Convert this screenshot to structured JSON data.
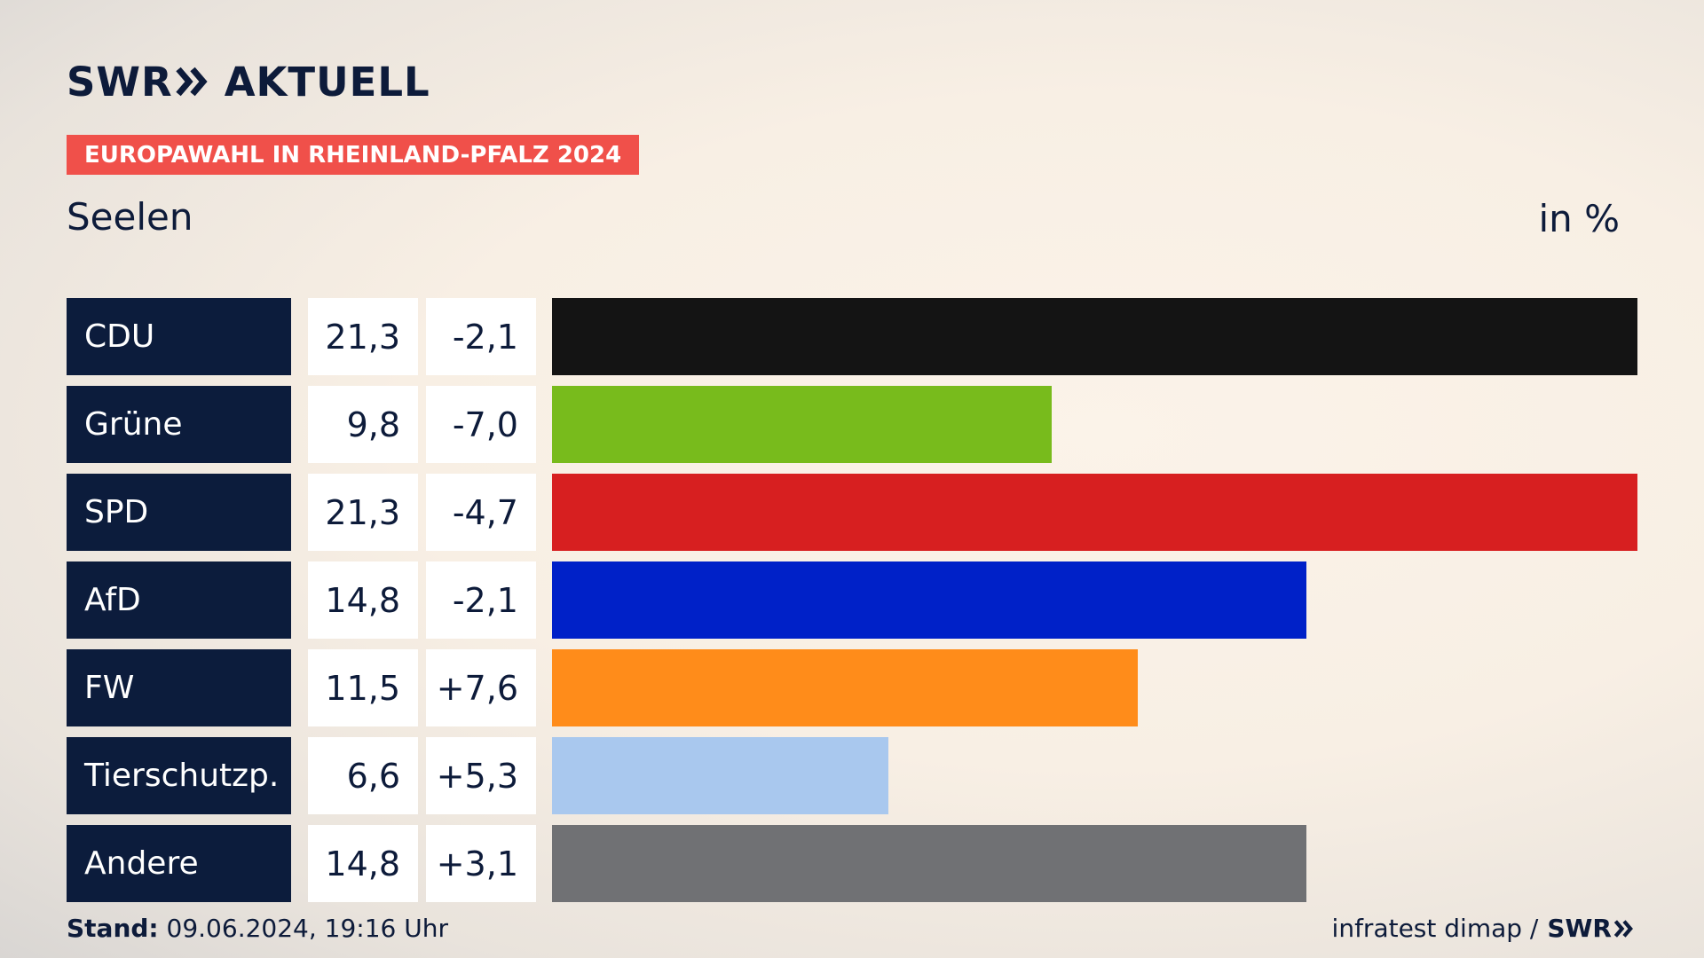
{
  "brand": {
    "logo_left": "SWR",
    "logo_right": "AKTUELL",
    "chevron_icon": "double-chevron-right-icon"
  },
  "tagline": "EUROPAWAHL IN RHEINLAND-PFALZ 2024",
  "subtitle": "Seelen",
  "unit": "in %",
  "colors": {
    "tagline_bg": "#f0504a",
    "label_bg": "#0c1c3c",
    "text": "#0d1b3a"
  },
  "chart_data": {
    "type": "bar",
    "orientation": "horizontal",
    "categories": [
      "CDU",
      "Grüne",
      "SPD",
      "AfD",
      "FW",
      "Tierschutzp.",
      "Andere"
    ],
    "values": [
      21.3,
      9.8,
      21.3,
      14.8,
      11.5,
      6.6,
      14.8
    ],
    "value_labels": [
      "21,3",
      "9,8",
      "21,3",
      "14,8",
      "11,5",
      "6,6",
      "14,8"
    ],
    "changes": [
      -2.1,
      -7.0,
      -4.7,
      -2.1,
      7.6,
      5.3,
      3.1
    ],
    "change_labels": [
      "-2,1",
      "-7,0",
      "-4,7",
      "-2,1",
      "+7,6",
      "+5,3",
      "+3,1"
    ],
    "bar_colors": [
      "#141414",
      "#78bb1c",
      "#d71f20",
      "#0021c8",
      "#ff8c1a",
      "#a9c8ee",
      "#707174"
    ],
    "xlim": [
      0,
      21.3
    ],
    "title": "Seelen",
    "unit": "in %"
  },
  "footer": {
    "stand_label": "Stand:",
    "stand_value": "09.06.2024, 19:16 Uhr",
    "source": "infratest dimap /",
    "source_brand": "SWR"
  }
}
